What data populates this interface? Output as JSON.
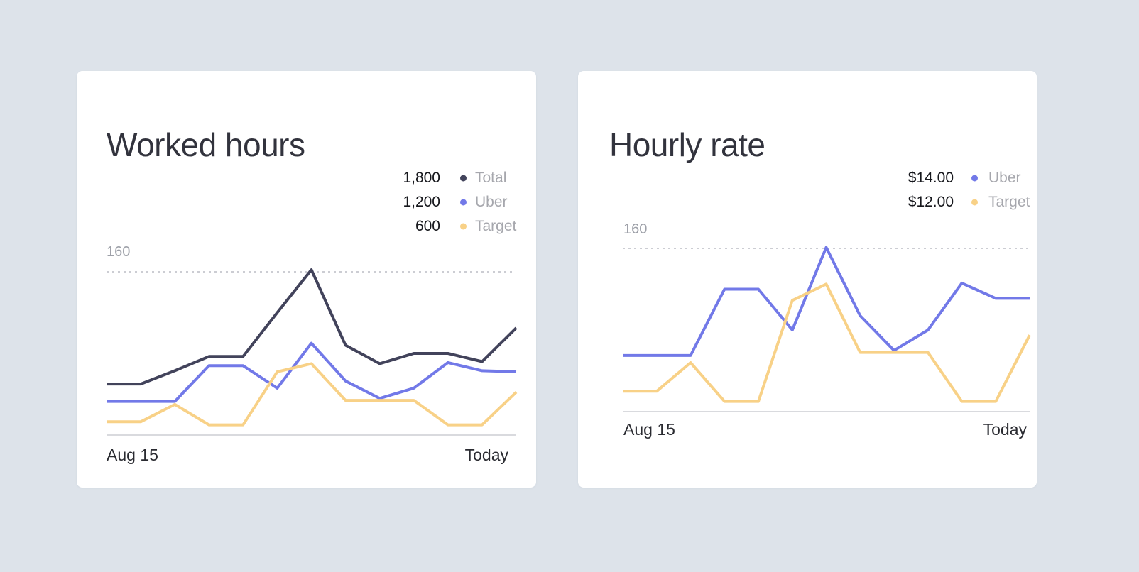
{
  "page": {
    "background_color": "#dde3ea",
    "card_color": "#ffffff"
  },
  "chart_data": [
    {
      "type": "line",
      "title": "Worked hours",
      "x_tick_labels": [
        "Aug 15",
        "Today"
      ],
      "y_gridline": {
        "label": "160",
        "value": 160
      },
      "ylim": [
        0,
        170
      ],
      "legend_position": "top-right",
      "grid": "single dashed horizontal line at y=160",
      "series": [
        {
          "name": "Total",
          "legend_value": "1,800",
          "color": "#42435b",
          "values": [
            50,
            50,
            63,
            77,
            77,
            120,
            162,
            88,
            70,
            80,
            80,
            72,
            105
          ]
        },
        {
          "name": "Uber",
          "legend_value": "1,200",
          "color": "#7279e8",
          "values": [
            33,
            33,
            33,
            68,
            68,
            46,
            90,
            53,
            36,
            46,
            71,
            63,
            62
          ]
        },
        {
          "name": "Target",
          "legend_value": "600",
          "color": "#f8d187",
          "values": [
            13,
            13,
            30,
            10,
            10,
            62,
            70,
            34,
            34,
            34,
            10,
            10,
            42
          ]
        }
      ]
    },
    {
      "type": "line",
      "title": "Hourly rate",
      "x_tick_labels": [
        "Aug 15",
        "Today"
      ],
      "y_gridline": {
        "label": "160",
        "value": 160
      },
      "ylim": [
        0,
        170
      ],
      "legend_position": "top-right",
      "grid": "single dashed horizontal line at y=160",
      "series": [
        {
          "name": "Uber",
          "legend_value": "$14.00",
          "color": "#7279e8",
          "values": [
            55,
            55,
            55,
            120,
            120,
            80,
            161,
            94,
            60,
            80,
            126,
            111,
            111
          ]
        },
        {
          "name": "Target",
          "legend_value": "$12.00",
          "color": "#f8d187",
          "values": [
            20,
            20,
            48,
            10,
            10,
            109,
            125,
            58,
            58,
            58,
            10,
            10,
            75
          ]
        }
      ]
    }
  ]
}
